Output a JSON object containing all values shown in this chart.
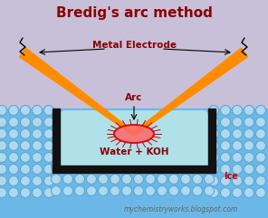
{
  "title": "Bredig's arc method",
  "title_color": "#8B0000",
  "title_fontsize": 11,
  "bg_color": "#C8C0D8",
  "water_color": "#B0E0E8",
  "ice_bg_color": "#6BB8E8",
  "bubble_face_color": "#B0D8F0",
  "bubble_edge_color": "#5AAAD0",
  "electrode_color": "#FF8C00",
  "arc_ring_color": "#CC0000",
  "arc_fill_color": "#FF6666",
  "container_color": "#111111",
  "annotation_color": "#8B0000",
  "label_metal_electrode": "Metal Electrode",
  "label_arc": "Arc",
  "label_water": "Water + KOH",
  "label_ice": "Ice",
  "watermark": "mychemistryworks.blogspot.com",
  "watermark_color": "#666666",
  "watermark_fontsize": 5.5
}
